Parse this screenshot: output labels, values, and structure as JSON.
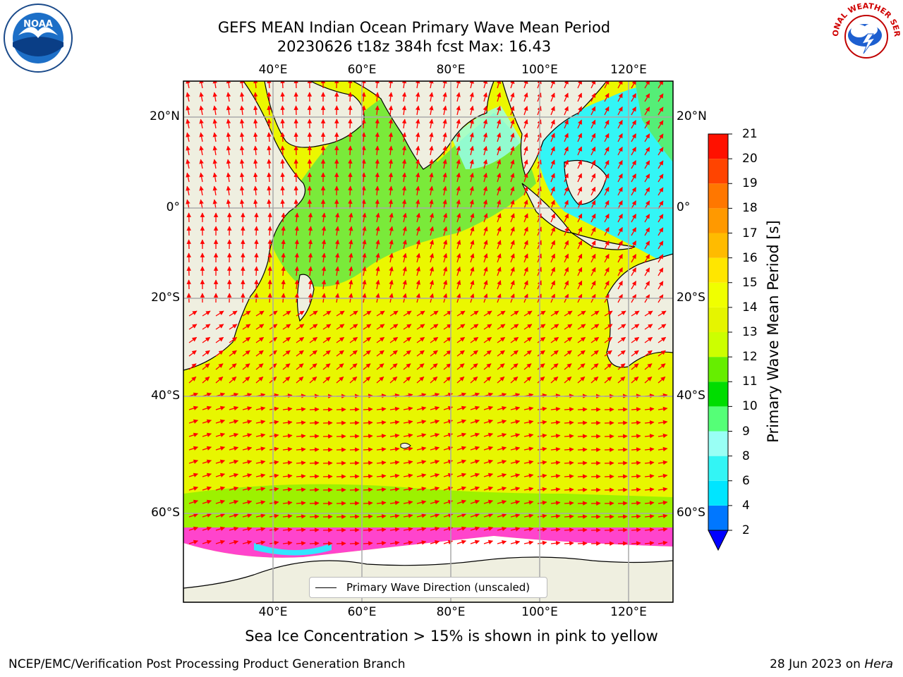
{
  "title": {
    "line1": "GEFS MEAN Indian Ocean Primary Wave Mean Period",
    "line2": "20230626 t18z 384h fcst   Max: 16.43"
  },
  "map": {
    "lon_min": 20,
    "lon_max": 130,
    "lat_min": -73,
    "lat_max": 28,
    "lon_ticks": [
      "40°E",
      "60°E",
      "80°E",
      "100°E",
      "120°E"
    ],
    "lat_ticks": [
      "20°N",
      "0°",
      "20°S",
      "40°S",
      "60°S"
    ],
    "gridlines": true,
    "field_colors": {
      "land": "#efefe0",
      "ocean_main": "#eaf703",
      "ocean_shelf": "#ccf700",
      "tropical": "#66e844",
      "seas": "#33f5f5",
      "ice": "#ff44cc"
    },
    "arrow_color": "#ff0000"
  },
  "colorbar": {
    "label": "Primary Wave Mean Period [s]",
    "levels": [
      "2",
      "4",
      "6",
      "8",
      "9",
      "10",
      "11",
      "12",
      "13",
      "14",
      "15",
      "16",
      "17",
      "18",
      "19",
      "20",
      "21"
    ],
    "colors": [
      "#0077ff",
      "#00e5ff",
      "#33f5f5",
      "#99fff5",
      "#55ff77",
      "#00dd00",
      "#66ee00",
      "#ccff00",
      "#e5f500",
      "#f0ff00",
      "#ffe600",
      "#ffbb00",
      "#ff9900",
      "#ff7700",
      "#ff4400",
      "#ff1100"
    ],
    "under_color": "#0000ff"
  },
  "legend": {
    "label": "Primary Wave Direction (unscaled)"
  },
  "footer": {
    "note": "Sea Ice Concentration > 15% is shown in pink to yellow",
    "credit": "NCEP/EMC/Verification Post Processing Product Generation Branch",
    "date": "28 Jun 2023 on ",
    "machine": "Hera"
  },
  "logos": {
    "noaa_text": "NOAA",
    "nws_text": "NATIONAL WEATHER SERVICE"
  }
}
